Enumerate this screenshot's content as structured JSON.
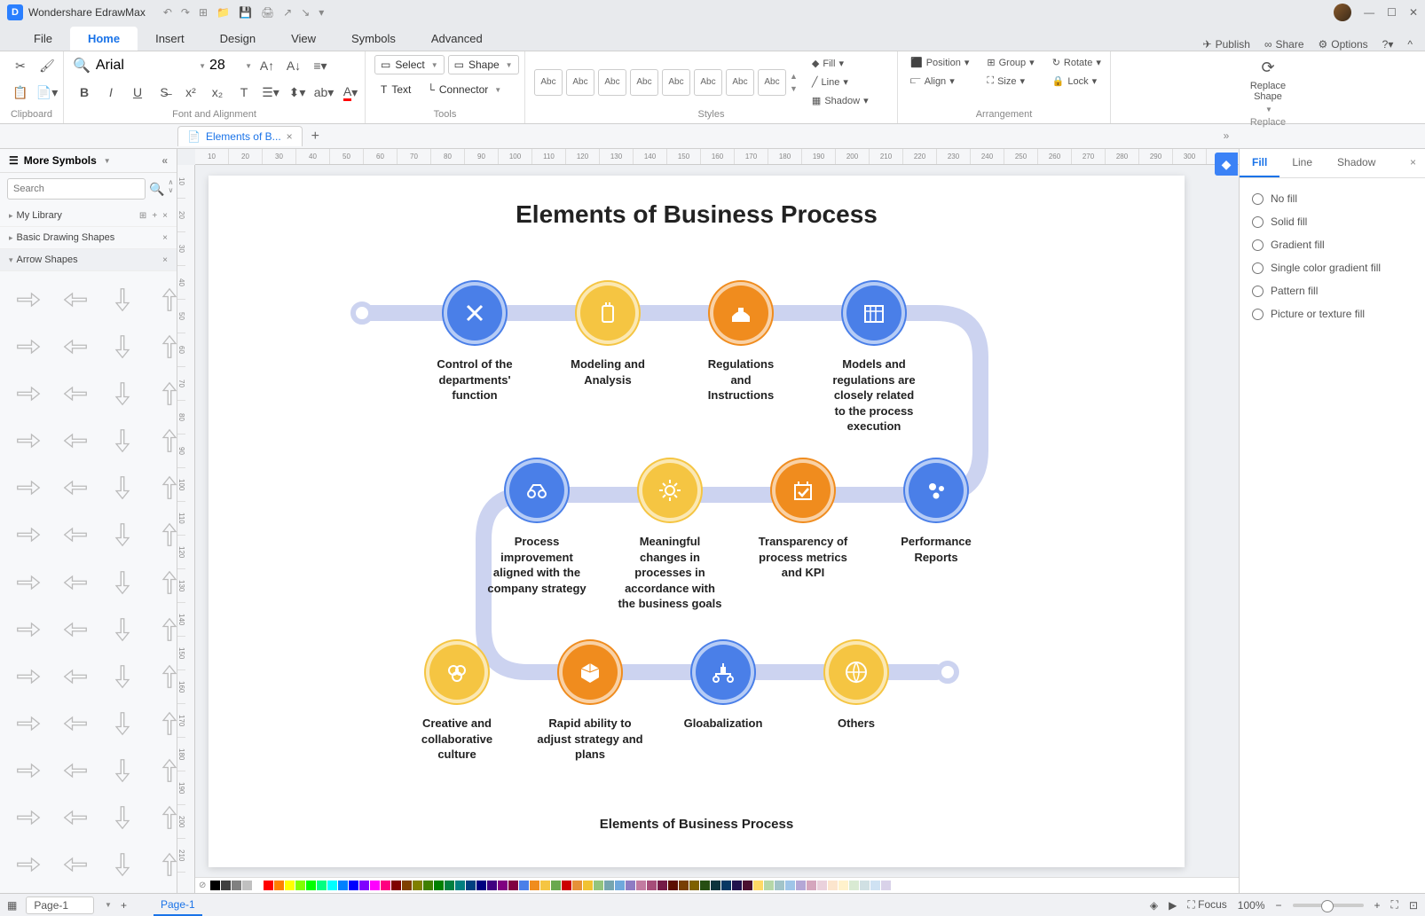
{
  "app": {
    "title": "Wondershare EdrawMax"
  },
  "menus": {
    "file": "File",
    "home": "Home",
    "insert": "Insert",
    "design": "Design",
    "view": "View",
    "symbols": "Symbols",
    "advanced": "Advanced"
  },
  "topRight": {
    "publish": "Publish",
    "share": "Share",
    "options": "Options"
  },
  "ribbon": {
    "clipboard": "Clipboard",
    "fontAlign": "Font and Alignment",
    "tools": "Tools",
    "styles": "Styles",
    "arrangement": "Arrangement",
    "replace": "Replace",
    "font": "Arial",
    "size": "28",
    "select": "Select",
    "shape": "Shape",
    "text": "Text",
    "connector": "Connector",
    "styleLabel": "Abc",
    "fill": "Fill",
    "line": "Line",
    "shadow": "Shadow",
    "position": "Position",
    "align": "Align",
    "group": "Group",
    "size2": "Size",
    "rotate": "Rotate",
    "lock": "Lock",
    "replaceShape": "Replace\nShape"
  },
  "docTab": "Elements of B...",
  "left": {
    "header": "More Symbols",
    "searchPlaceholder": "Search",
    "myLibrary": "My Library",
    "basicShapes": "Basic Drawing Shapes",
    "arrowShapes": "Arrow Shapes"
  },
  "right": {
    "tabs": {
      "fill": "Fill",
      "line": "Line",
      "shadow": "Shadow"
    },
    "collapse": "»",
    "opts": [
      "No fill",
      "Solid fill",
      "Gradient fill",
      "Single color gradient fill",
      "Pattern fill",
      "Picture or texture fill"
    ]
  },
  "diagram": {
    "title": "Elements of Business Process",
    "subtitle": "Elements of Business Process",
    "path_color": "#ccd3f0",
    "colors": {
      "blue": "#4a7fe8",
      "orange": "#f08c1e",
      "yellow": "#f5c542"
    },
    "row1": [
      {
        "color": "blue",
        "label": "Control of the\ndepartments'\nfunction"
      },
      {
        "color": "yellow",
        "label": "Modeling and\nAnalysis"
      },
      {
        "color": "orange",
        "label": "Regulations\nand\nInstructions"
      },
      {
        "color": "blue",
        "label": "Models and\nregulations are\nclosely related\nto the process\nexecution"
      }
    ],
    "row2": [
      {
        "color": "blue",
        "label": "Process\nimprovement\naligned with the\ncompany strategy"
      },
      {
        "color": "yellow",
        "label": "Meaningful\nchanges in\nprocesses in\naccordance with\nthe business goals"
      },
      {
        "color": "orange",
        "label": "Transparency of\nprocess metrics\nand KPI"
      },
      {
        "color": "blue",
        "label": "Performance\nReports"
      }
    ],
    "row3": [
      {
        "color": "yellow",
        "label": "Creative and\ncollaborative\nculture"
      },
      {
        "color": "orange",
        "label": "Rapid ability to\nadjust strategy and\nplans"
      },
      {
        "color": "blue",
        "label": "Gloabalization"
      },
      {
        "color": "yellow",
        "label": "Others"
      }
    ]
  },
  "status": {
    "page": "Page-1",
    "pageTab": "Page-1",
    "focus": "Focus",
    "zoom": "100%"
  },
  "ruler": {
    "h": [
      "10",
      "20",
      "30",
      "40",
      "50",
      "60",
      "70",
      "80",
      "90",
      "100",
      "110",
      "120",
      "130",
      "140",
      "150",
      "160",
      "170",
      "180",
      "190",
      "200",
      "210",
      "220",
      "230",
      "240",
      "250",
      "260",
      "270",
      "280",
      "290",
      "300"
    ],
    "v": [
      "10",
      "20",
      "30",
      "40",
      "50",
      "60",
      "70",
      "80",
      "90",
      "100",
      "110",
      "120",
      "130",
      "140",
      "150",
      "160",
      "170",
      "180",
      "190",
      "200",
      "210"
    ]
  },
  "swatches": [
    "#000000",
    "#404040",
    "#808080",
    "#c0c0c0",
    "#ffffff",
    "#ff0000",
    "#ff8000",
    "#ffff00",
    "#80ff00",
    "#00ff00",
    "#00ff80",
    "#00ffff",
    "#0080ff",
    "#0000ff",
    "#8000ff",
    "#ff00ff",
    "#ff0080",
    "#800000",
    "#804000",
    "#808000",
    "#408000",
    "#008000",
    "#008040",
    "#008080",
    "#004080",
    "#000080",
    "#400080",
    "#800080",
    "#800040",
    "#4a7fe8",
    "#f08c1e",
    "#f5c542",
    "#6aa84f",
    "#cc0000",
    "#e69138",
    "#f1c232",
    "#93c47d",
    "#76a5af",
    "#6fa8dc",
    "#8e7cc3",
    "#c27ba0",
    "#a64d79",
    "#741b47",
    "#5b0f00",
    "#783f04",
    "#7f6000",
    "#274e13",
    "#0c343d",
    "#073763",
    "#20124d",
    "#4c1130",
    "#ffd966",
    "#b6d7a8",
    "#a2c4c9",
    "#9fc5e8",
    "#b4a7d6",
    "#d5a6bd",
    "#ead1dc",
    "#fce5cd",
    "#fff2cc",
    "#d9ead3",
    "#d0e0e3",
    "#cfe2f3",
    "#d9d2e9"
  ]
}
